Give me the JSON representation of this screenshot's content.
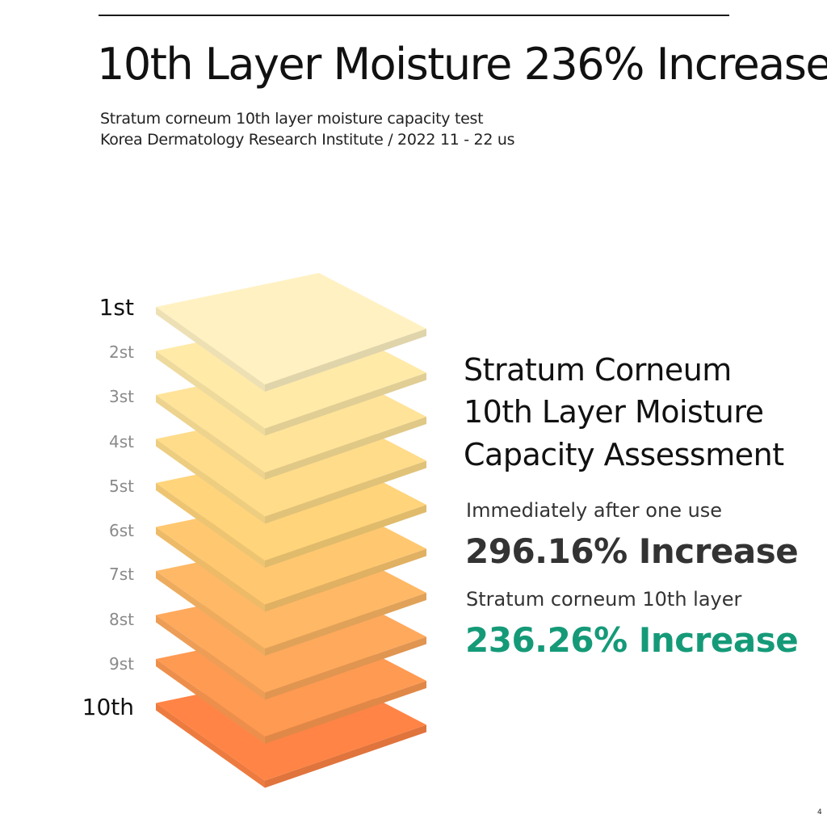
{
  "header": {
    "title": "10th Layer Moisture 236% Increase",
    "subtitle_line1": "Stratum corneum 10th layer moisture capacity test",
    "subtitle_line2": "Korea Dermatology Research Institute / 2022 11 - 22 us"
  },
  "layers": {
    "labels": [
      "1st",
      "2st",
      "3st",
      "4st",
      "5st",
      "6st",
      "7st",
      "8st",
      "9st",
      "10th"
    ],
    "colors": [
      "#fff1c2",
      "#ffeaa8",
      "#ffe399",
      "#ffdc8a",
      "#ffd47b",
      "#ffc870",
      "#ffb865",
      "#ffa95c",
      "#ff9a52",
      "#ff8445"
    ]
  },
  "panel": {
    "title_line1": "Stratum Corneum",
    "title_line2": "10th Layer Moisture",
    "title_line3": "Capacity Assessment",
    "stat1_caption": "Immediately after one use",
    "stat1_value": "296.16% Increase",
    "stat2_caption": "Stratum corneum 10th layer",
    "stat2_value": "236.26% Increase",
    "accent_color": "#159a78"
  },
  "page_mark": "4"
}
